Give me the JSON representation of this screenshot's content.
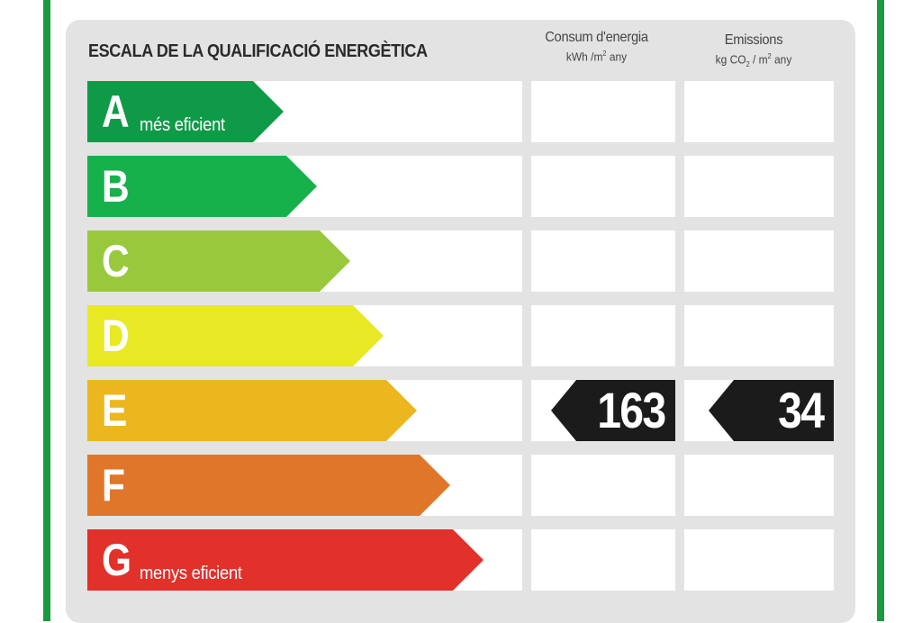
{
  "header": {
    "title": "ESCALA DE LA QUALIFICACIÓ ENERGÈTICA",
    "energy_label": "Consum d'energia",
    "energy_unit_a": "kWh /m",
    "energy_unit_sup": "2",
    "energy_unit_b": " any",
    "emissions_label": "Emissions",
    "emissions_unit_a": "kg CO",
    "emissions_unit_sub": "2",
    "emissions_unit_b": " / m",
    "emissions_unit_sup": "2",
    "emissions_unit_c": " any"
  },
  "chart_data": {
    "type": "table",
    "columns": [
      "Consum d'energia",
      "Emissions"
    ],
    "grades": [
      {
        "letter": "A",
        "note": "més eficient",
        "color": "#0f9a48"
      },
      {
        "letter": "B",
        "note": "",
        "color": "#16b14b"
      },
      {
        "letter": "C",
        "note": "",
        "color": "#98c93c"
      },
      {
        "letter": "D",
        "note": "",
        "color": "#e8e824"
      },
      {
        "letter": "E",
        "note": "",
        "color": "#ecb61f"
      },
      {
        "letter": "F",
        "note": "",
        "color": "#e0762a"
      },
      {
        "letter": "G",
        "note": "menys eficient",
        "color": "#e2302a"
      }
    ],
    "rating": {
      "grade": "E",
      "energy": "163",
      "emissions": "34"
    }
  }
}
